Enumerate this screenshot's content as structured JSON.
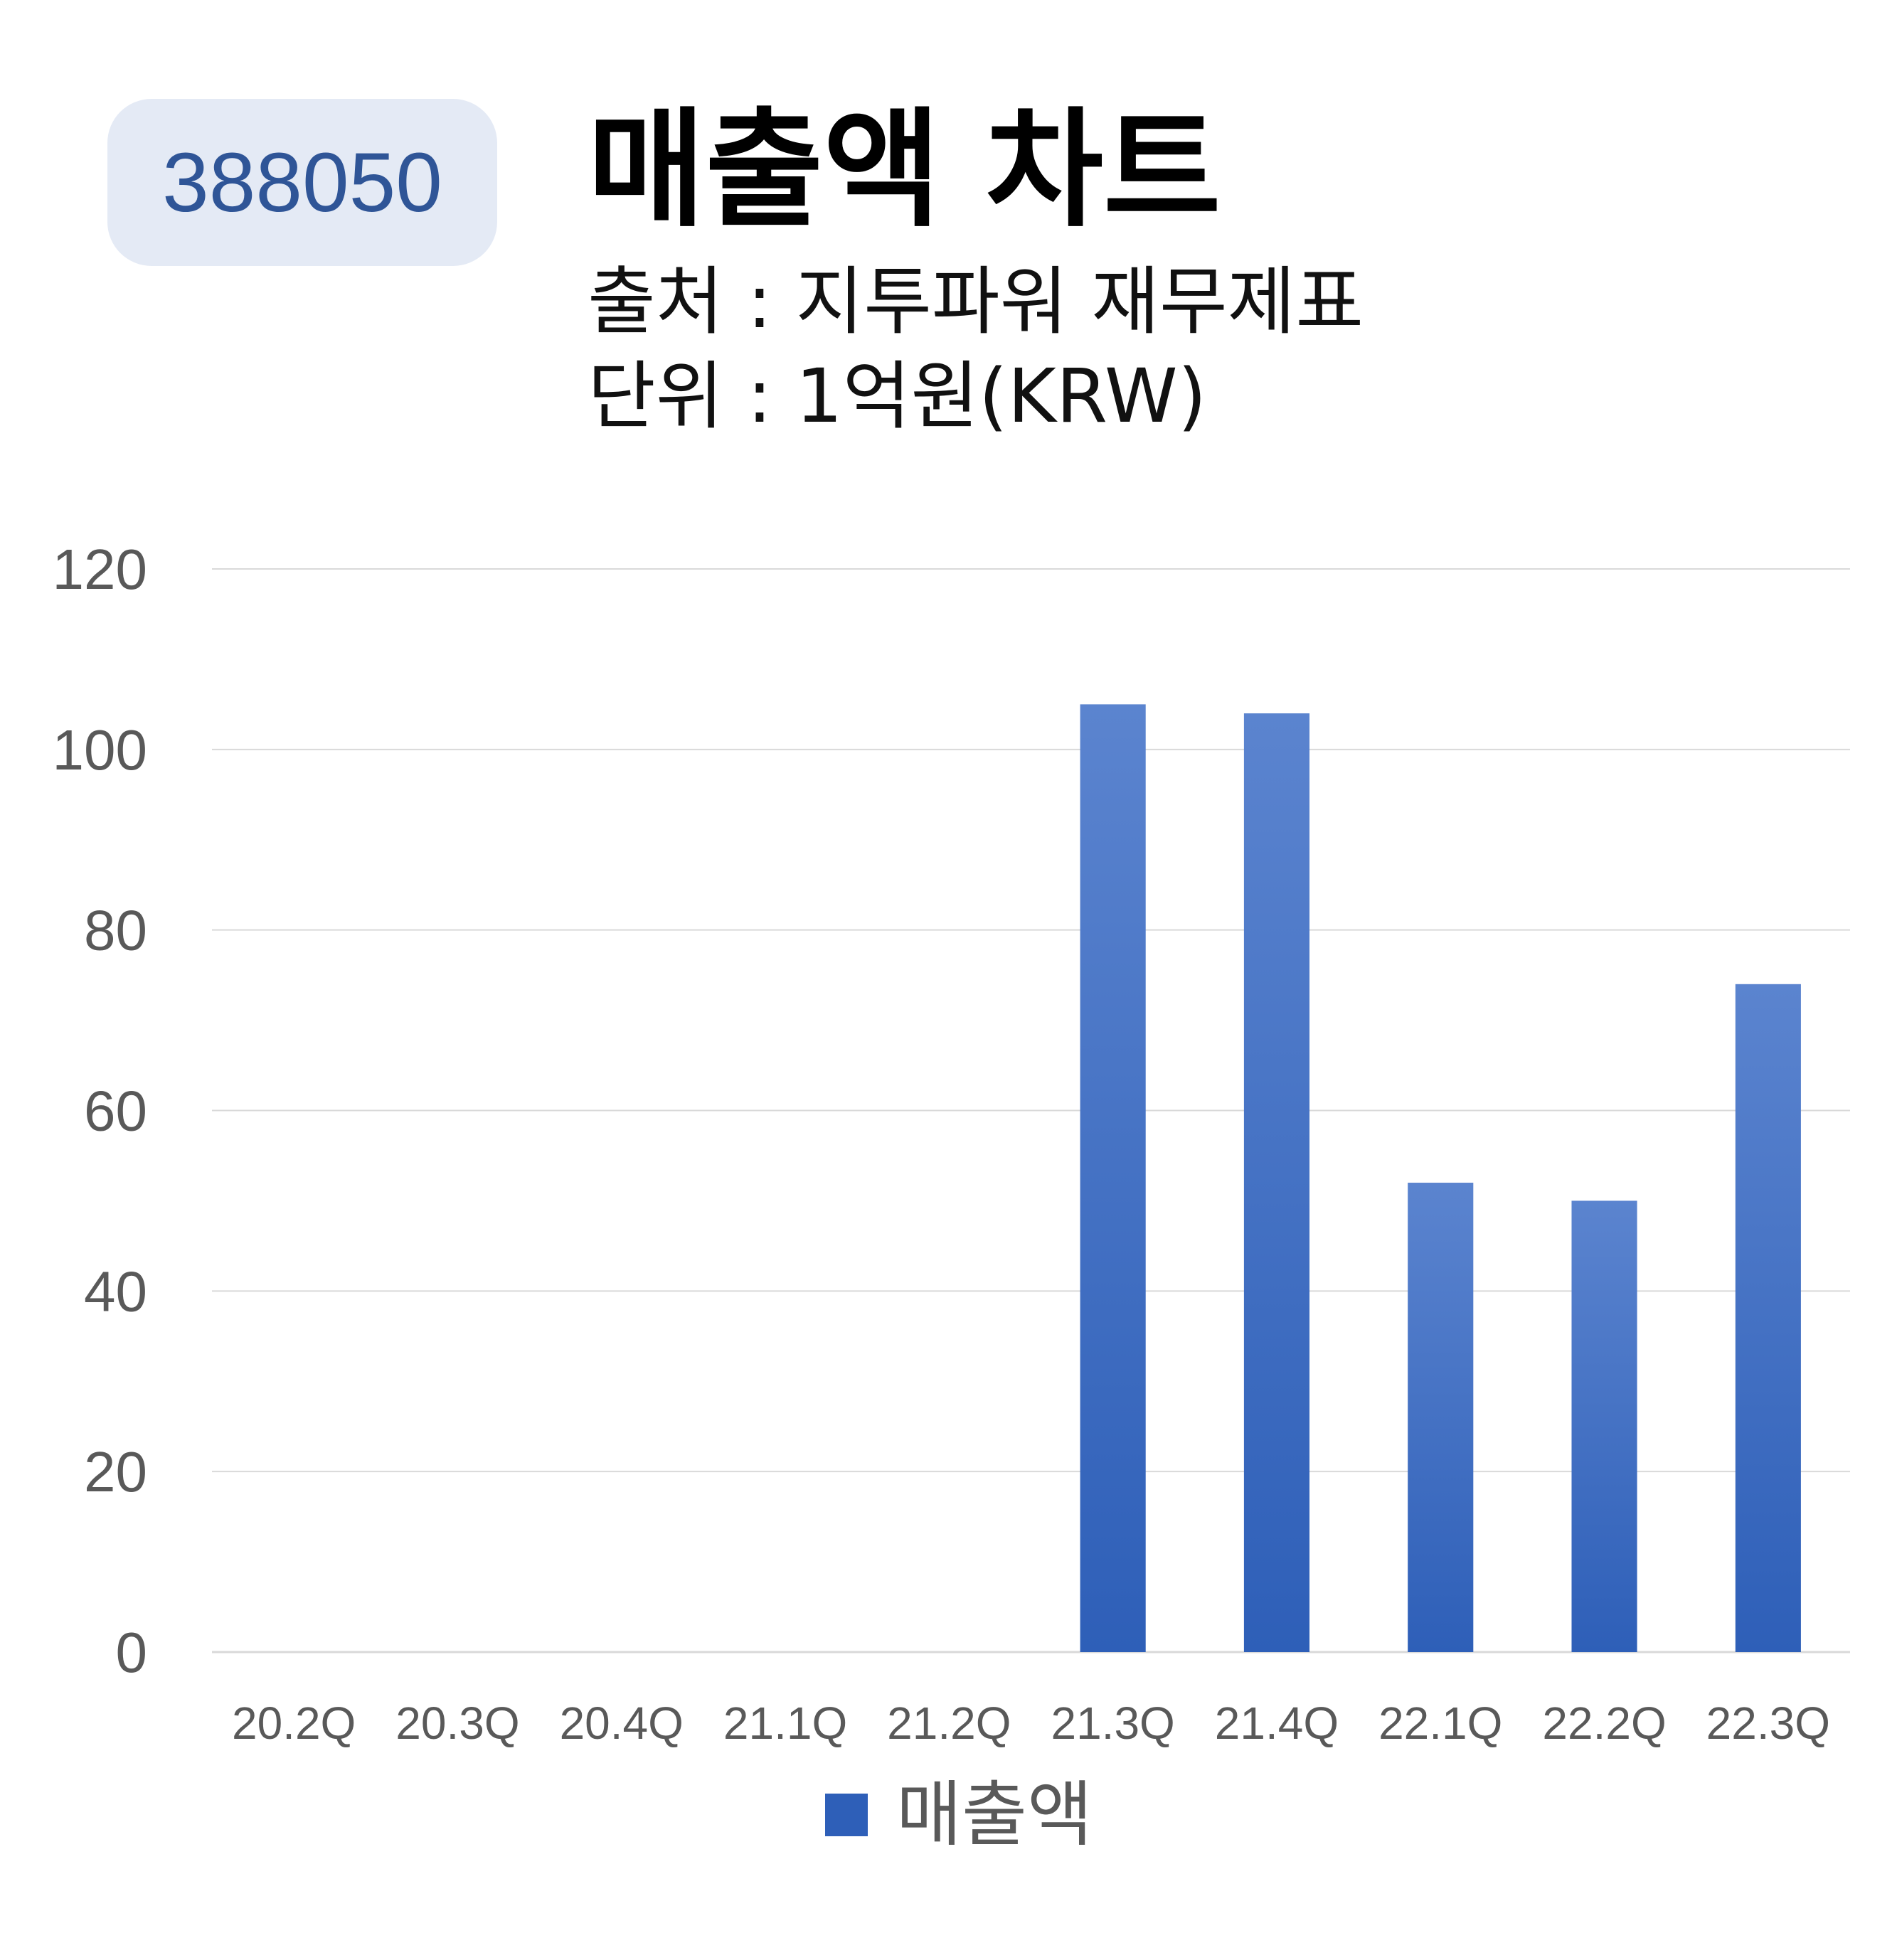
{
  "code_badge": "388050",
  "title": "매출액 차트",
  "source_line": "출처 : 지투파워 재무제표",
  "unit_line": "단위 : 1억원(KRW)",
  "colors": {
    "bar_top": "#5b84cf",
    "bar_bottom": "#2e5fb8",
    "badge_bg": "#e4eaf5",
    "badge_text": "#2f5597",
    "grid": "#d9d9d9",
    "tick_text": "#595959"
  },
  "chart_data": {
    "type": "bar",
    "categories": [
      "20.2Q",
      "20.3Q",
      "20.4Q",
      "21.1Q",
      "21.2Q",
      "21.3Q",
      "21.4Q",
      "22.1Q",
      "22.2Q",
      "22.3Q"
    ],
    "series": [
      {
        "name": "매출액",
        "values": [
          0,
          0,
          0,
          0,
          0,
          105,
          104,
          52,
          50,
          74
        ]
      }
    ],
    "ylim": [
      0,
      120
    ],
    "yticks": [
      "0",
      "20",
      "40",
      "60",
      "80",
      "100",
      "120"
    ],
    "grid": true,
    "legend": "bottom"
  }
}
